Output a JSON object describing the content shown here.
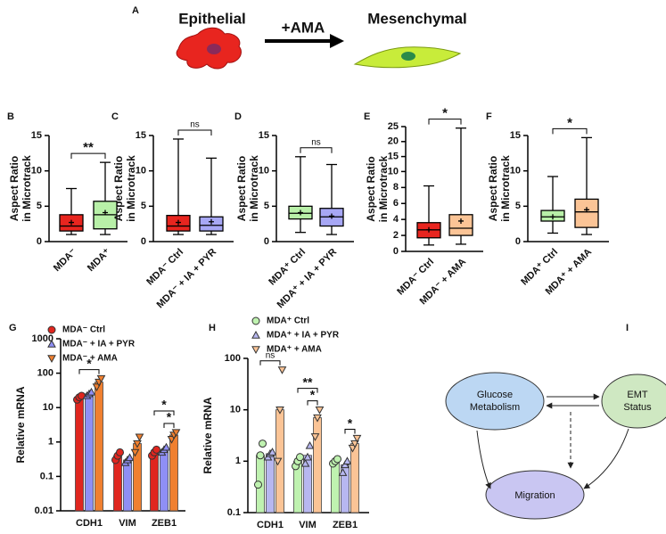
{
  "diagram_a": {
    "letter": "A",
    "left_label": "Epithelial",
    "arrow_label": "+AMA",
    "right_label": "Mesenchymal"
  },
  "chart_data": [
    {
      "type": "box",
      "letter": "B",
      "y_label": [
        "Aspect Ratio",
        "in Microtrack"
      ],
      "categories": [
        "MDA⁻",
        "MDA⁺"
      ],
      "colors": [
        "#e8251f",
        "#b8f0a8"
      ],
      "boxes": [
        {
          "min": 1,
          "q1": 1.5,
          "median": 2.2,
          "q3": 3.8,
          "max": 7.5,
          "mean": 2.7
        },
        {
          "min": 1,
          "q1": 1.8,
          "median": 3.8,
          "q3": 5.7,
          "max": 11.2,
          "mean": 4.1
        }
      ],
      "ylim": [
        0,
        15
      ],
      "yticks": [
        0,
        5,
        10,
        15
      ],
      "comparison": "**"
    },
    {
      "type": "box",
      "letter": "C",
      "y_label": [
        "Aspect Ratio",
        "in Microtrack"
      ],
      "categories": [
        "MDA⁻ Ctrl",
        "MDA⁻ + IA + PYR"
      ],
      "colors": [
        "#e8251f",
        "#a7a7f5"
      ],
      "boxes": [
        {
          "min": 1,
          "q1": 1.5,
          "median": 2.2,
          "q3": 3.7,
          "max": 14.5,
          "mean": 2.7
        },
        {
          "min": 1,
          "q1": 1.5,
          "median": 2.3,
          "q3": 3.5,
          "max": 11.8,
          "mean": 2.8
        }
      ],
      "ylim": [
        0,
        15
      ],
      "yticks": [
        0,
        5,
        10,
        15
      ],
      "comparison": "ns"
    },
    {
      "type": "box",
      "letter": "D",
      "y_label": [
        "Aspect Ratio",
        "in Microtrack"
      ],
      "categories": [
        "MDA⁺ Ctrl",
        "MDA⁺ + IA + PYR"
      ],
      "colors": [
        "#b8f0a8",
        "#a7a7f5"
      ],
      "boxes": [
        {
          "min": 1.3,
          "q1": 3.2,
          "median": 4,
          "q3": 5,
          "max": 12,
          "mean": 4.1
        },
        {
          "min": 1,
          "q1": 2.2,
          "median": 3.5,
          "q3": 4.7,
          "max": 10.9,
          "mean": 3.6
        }
      ],
      "ylim": [
        0,
        15
      ],
      "yticks": [
        0,
        5,
        10,
        15
      ],
      "comparison": "ns"
    },
    {
      "type": "box",
      "letter": "E",
      "y_label": [
        "Aspect Ratio",
        "in Microtrack"
      ],
      "categories": [
        "MDA⁻ Ctrl",
        "MDA⁻ + AMA"
      ],
      "colors": [
        "#e8251f",
        "#fbc496"
      ],
      "boxes": [
        {
          "min": 0.8,
          "q1": 1.7,
          "median": 2.7,
          "q3": 3.6,
          "max": 8.2,
          "mean": 2.7
        },
        {
          "min": 0.9,
          "q1": 2,
          "median": 2.9,
          "q3": 4.6,
          "max": 24.5,
          "mean": 3.8
        }
      ],
      "ylim": [
        0,
        25
      ],
      "yticks": [
        0,
        2,
        4,
        6,
        8,
        10,
        15,
        20,
        25
      ],
      "yscale": "segmented",
      "ybreak": 10,
      "comparison": "*"
    },
    {
      "type": "box",
      "letter": "F",
      "y_label": [
        "Aspect Ratio",
        "in Microtrack"
      ],
      "categories": [
        "MDA⁺ Ctrl",
        "MDA⁺ + AMA"
      ],
      "colors": [
        "#b8f0a8",
        "#fbc496"
      ],
      "boxes": [
        {
          "min": 1.2,
          "q1": 2.9,
          "median": 3.5,
          "q3": 4.4,
          "max": 9.2,
          "mean": 3.5
        },
        {
          "min": 1,
          "q1": 2,
          "median": 4.2,
          "q3": 6,
          "max": 14.7,
          "mean": 4.5
        }
      ],
      "ylim": [
        0,
        15
      ],
      "yticks": [
        0,
        5,
        10,
        15
      ],
      "comparison": "*"
    },
    {
      "type": "bar",
      "letter": "G",
      "y_label": "Relative mRNA",
      "categories": [
        "CDH1",
        "VIM",
        "ZEB1"
      ],
      "yscale": "log",
      "ylim": [
        0.01,
        1000
      ],
      "yticks": [
        0.01,
        0.1,
        1,
        10,
        100,
        1000
      ],
      "series": [
        {
          "name": "MDA⁻ Ctrl",
          "color": "#e0261f",
          "marker": "circle",
          "values": [
            20,
            0.4,
            0.5
          ],
          "points": [
            [
              17,
              20,
              22
            ],
            [
              0.3,
              0.4,
              0.5
            ],
            [
              0.4,
              0.5,
              0.6
            ]
          ]
        },
        {
          "name": "MDA⁻ + IA + PYR",
          "color": "#8f8ff5",
          "marker": "triangle-up",
          "values": [
            25,
            0.3,
            0.6
          ],
          "points": [
            [
              22,
              25,
              28
            ],
            [
              0.25,
              0.3,
              0.35
            ],
            [
              0.5,
              0.6,
              0.7
            ]
          ]
        },
        {
          "name": "MDA⁻ + AMA",
          "color": "#f08030",
          "marker": "triangle-down",
          "values": [
            55,
            0.9,
            1.6
          ],
          "points": [
            [
              40,
              55,
              70
            ],
            [
              0.5,
              0.9,
              1.4
            ],
            [
              1.2,
              1.6,
              1.9
            ]
          ]
        }
      ],
      "comparisons": [
        {
          "label": "*",
          "category": 0,
          "series": [
            0,
            2
          ]
        },
        {
          "label": "*",
          "category": 2,
          "series": [
            1,
            2
          ]
        },
        {
          "label": "*",
          "category": 2,
          "series": [
            0,
            2
          ]
        }
      ]
    },
    {
      "type": "bar",
      "letter": "H",
      "y_label": "Relative mRNA",
      "categories": [
        "CDH1",
        "VIM",
        "ZEB1"
      ],
      "yscale": "log",
      "ylim": [
        0.1,
        100
      ],
      "yticks": [
        0.1,
        1,
        10,
        100
      ],
      "series": [
        {
          "name": "MDA⁺ Ctrl",
          "color": "#bff2b0",
          "marker": "circle",
          "values": [
            1.3,
            1,
            1
          ],
          "points": [
            [
              0.35,
              1.3,
              2.2
            ],
            [
              0.8,
              1,
              1.2
            ],
            [
              0.9,
              1,
              1.1
            ]
          ]
        },
        {
          "name": "MDA⁺ + IA + PYR",
          "color": "#b7b7f0",
          "marker": "triangle-up",
          "values": [
            1.4,
            1.3,
            0.85
          ],
          "points": [
            [
              1.2,
              1.4,
              1.5
            ],
            [
              0.9,
              1.2,
              2
            ],
            [
              0.6,
              0.85,
              1
            ]
          ]
        },
        {
          "name": "MDA⁺ + AMA",
          "color": "#fbc496",
          "marker": "triangle-down",
          "values": [
            10,
            7,
            2.2
          ],
          "points": [
            [
              1,
              10,
              60
            ],
            [
              3,
              7,
              10
            ],
            [
              1.8,
              2.2,
              2.8
            ]
          ]
        }
      ],
      "comparisons": [
        {
          "label": "ns",
          "category": 0,
          "series": [
            0,
            2
          ]
        },
        {
          "label": "*",
          "category": 1,
          "series": [
            1,
            2
          ]
        },
        {
          "label": "**",
          "category": 1,
          "series": [
            0,
            2
          ]
        },
        {
          "label": "*",
          "category": 2,
          "series": [
            1,
            2
          ]
        }
      ]
    }
  ],
  "diagram_i": {
    "letter": "I",
    "nodes": [
      {
        "label": [
          "Glucose",
          "Metabolism"
        ]
      },
      {
        "label": [
          "EMT",
          "Status"
        ]
      },
      {
        "label": [
          "Migration"
        ]
      }
    ]
  }
}
